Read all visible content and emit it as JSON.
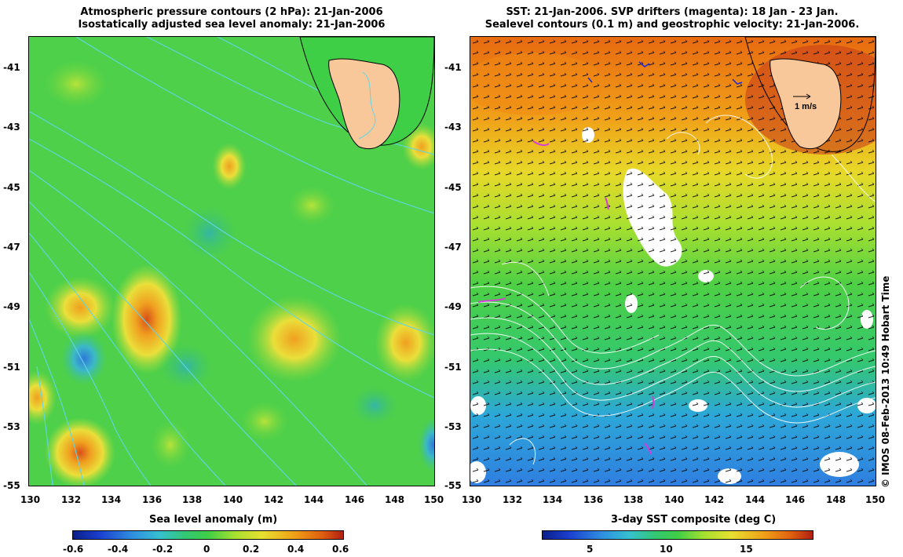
{
  "left_panel": {
    "title_line1": "Atmospheric pressure contours (2 hPa): 21-Jan-2006",
    "title_line2": "Isostatically adjusted sea level anomaly: 21-Jan-2006",
    "colorbar_label": "Sea level anomaly (m)",
    "colorbar_ticks": [
      "-0.6",
      "-0.4",
      "-0.2",
      "0",
      "0.2",
      "0.4",
      "0.6"
    ]
  },
  "right_panel": {
    "title_line1": "SST: 21-Jan-2006. SVP drifters (magenta): 18 Jan - 23 Jan.",
    "title_line2": "Sealevel contours (0.1 m) and geostrophic velocity: 21-Jan-2006.",
    "colorbar_label": "3-day SST composite (deg C)",
    "colorbar_ticks": [
      "5",
      "10",
      "15"
    ],
    "scale_arrow_label": "1 m/s"
  },
  "y_ticks": [
    "-41",
    "-43",
    "-45",
    "-47",
    "-49",
    "-51",
    "-53",
    "-55"
  ],
  "x_ticks": [
    "130",
    "132",
    "134",
    "136",
    "138",
    "140",
    "142",
    "144",
    "146",
    "148",
    "150"
  ],
  "credit": "© IMOS 08-Feb-2013 10:49 Hobart Time",
  "colors": {
    "land": "#f9c89a",
    "sla_positive": "#e7e53a",
    "sla_neutral": "#3fcf47",
    "sla_negative": "#36b4c9",
    "sst_warm": "#e8650e",
    "sst_mid": "#36c84a",
    "sst_cold": "#2f8fe0",
    "drifters": "#d63cd6",
    "pressure_contours": "#5fd6e6"
  }
}
